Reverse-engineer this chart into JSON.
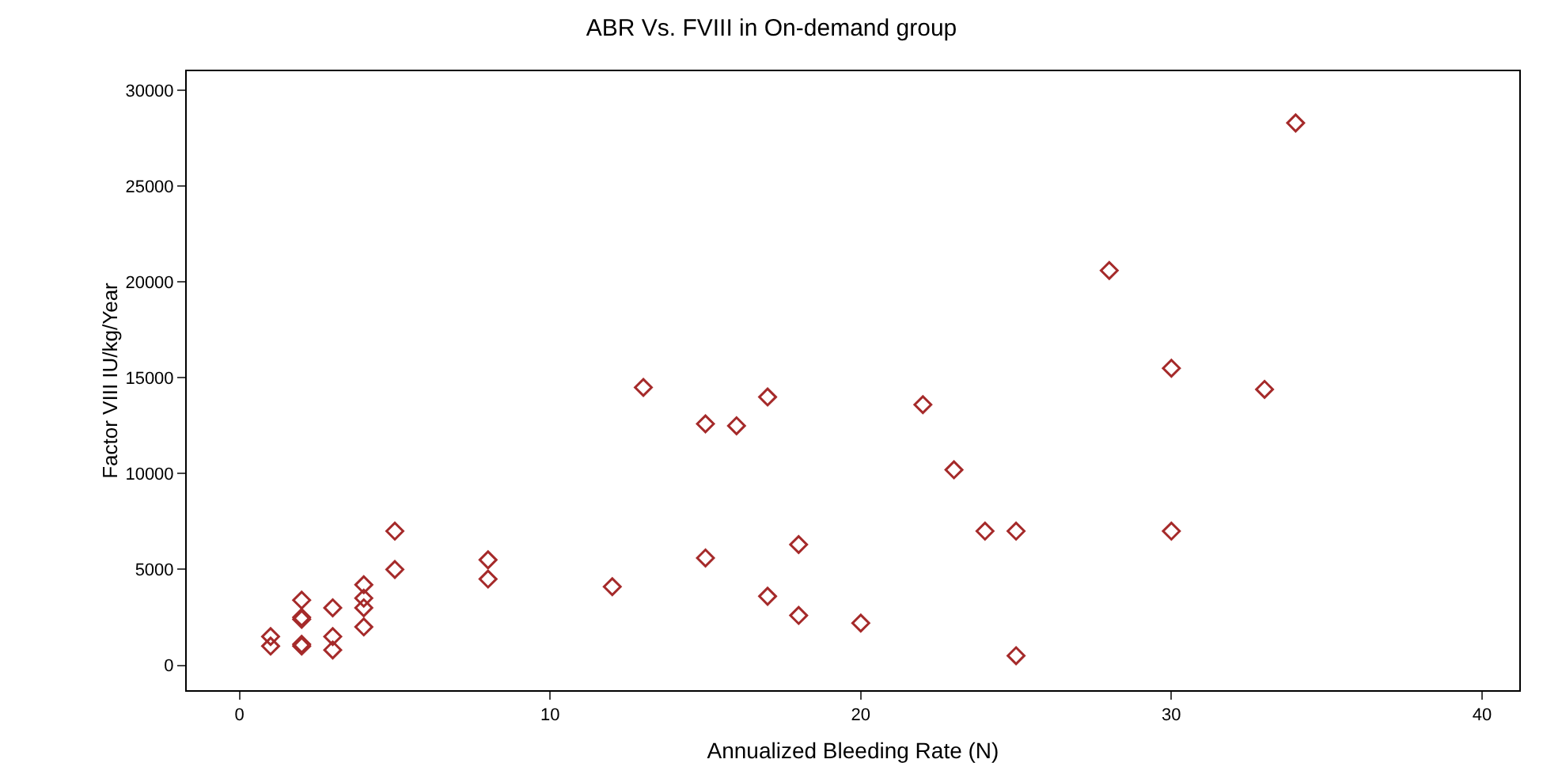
{
  "chart_data": {
    "type": "scatter",
    "title": "ABR Vs. FVIII in On-demand group",
    "xlabel": "Annualized Bleeding Rate (N)",
    "ylabel": "Factor VIII IU/kg/Year",
    "series": [
      {
        "color": "#a52a2a",
        "x": [
          1,
          1,
          2,
          2,
          2,
          2,
          2,
          3,
          3,
          3,
          4,
          4,
          4,
          4,
          5,
          5,
          8,
          8,
          12,
          13,
          15,
          15,
          16,
          17,
          17,
          18,
          18,
          20,
          22,
          23,
          24,
          25,
          25,
          28,
          30,
          30,
          33,
          34
        ],
        "values": [
          1500,
          1000,
          3400,
          2500,
          2400,
          1100,
          1000,
          3000,
          1500,
          800,
          4200,
          3500,
          3000,
          2000,
          7000,
          5000,
          5500,
          4500,
          4100,
          14500,
          12600,
          5600,
          12500,
          14000,
          3600,
          6300,
          2600,
          2200,
          13600,
          10200,
          7000,
          7000,
          500,
          20600,
          15500,
          7000,
          14400,
          28300
        ]
      }
    ],
    "xlim": [
      -1.7,
      41.2
    ],
    "xticks": [
      0,
      10,
      20,
      30,
      40
    ],
    "ylim": [
      -1300,
      31000
    ],
    "yticks": [
      0,
      5000,
      10000,
      15000,
      20000,
      25000,
      30000
    ],
    "grid": false,
    "marker": "diamond"
  }
}
